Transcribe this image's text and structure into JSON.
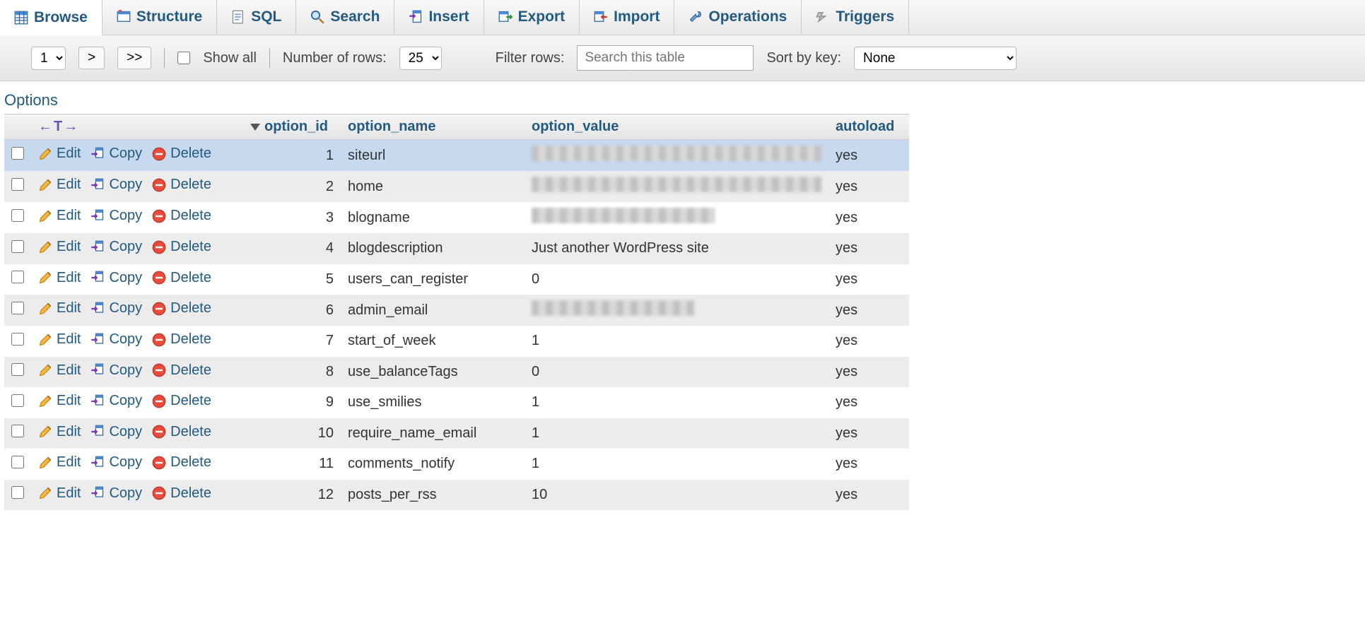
{
  "colors": {
    "link": "#235a81",
    "header_bg_top": "#f4f4f4",
    "header_bg_bottom": "#e4e4e4",
    "row_even": "#ececec",
    "row_odd": "#ffffff",
    "row_highlight": "#c7d9ef"
  },
  "tabs": [
    {
      "label": "Browse",
      "icon": "browse",
      "active": true
    },
    {
      "label": "Structure",
      "icon": "structure",
      "active": false
    },
    {
      "label": "SQL",
      "icon": "sql",
      "active": false
    },
    {
      "label": "Search",
      "icon": "search",
      "active": false
    },
    {
      "label": "Insert",
      "icon": "insert",
      "active": false
    },
    {
      "label": "Export",
      "icon": "export",
      "active": false
    },
    {
      "label": "Import",
      "icon": "import",
      "active": false
    },
    {
      "label": "Operations",
      "icon": "operations",
      "active": false
    },
    {
      "label": "Triggers",
      "icon": "triggers",
      "active": false
    }
  ],
  "toolbar": {
    "page_select_value": "1",
    "page_next": ">",
    "page_last": ">>",
    "show_all_label": "Show all",
    "show_all_checked": false,
    "num_rows_label": "Number of rows:",
    "num_rows_value": "25",
    "filter_label": "Filter rows:",
    "filter_placeholder": "Search this table",
    "sort_label": "Sort by key:",
    "sort_value": "None"
  },
  "options_label": "Options",
  "sort_toggle_glyph": "←T→",
  "table": {
    "columns": [
      "option_id",
      "option_name",
      "option_value",
      "autoload"
    ],
    "sorted_column": "option_id",
    "sort_dir": "desc",
    "action_labels": {
      "edit": "Edit",
      "copy": "Copy",
      "delete": "Delete"
    },
    "rows": [
      {
        "id": 1,
        "name": "siteurl",
        "value_blurred": true,
        "blur_w": 410,
        "value": "",
        "autoload": "yes",
        "highlight": true
      },
      {
        "id": 2,
        "name": "home",
        "value_blurred": true,
        "blur_w": 410,
        "value": "",
        "autoload": "yes"
      },
      {
        "id": 3,
        "name": "blogname",
        "value_blurred": true,
        "blur_w": 260,
        "value": "",
        "autoload": "yes"
      },
      {
        "id": 4,
        "name": "blogdescription",
        "value_blurred": false,
        "value": "Just another WordPress site",
        "autoload": "yes"
      },
      {
        "id": 5,
        "name": "users_can_register",
        "value_blurred": false,
        "value": "0",
        "autoload": "yes"
      },
      {
        "id": 6,
        "name": "admin_email",
        "value_blurred": true,
        "blur_w": 230,
        "value": "",
        "autoload": "yes"
      },
      {
        "id": 7,
        "name": "start_of_week",
        "value_blurred": false,
        "value": "1",
        "autoload": "yes"
      },
      {
        "id": 8,
        "name": "use_balanceTags",
        "value_blurred": false,
        "value": "0",
        "autoload": "yes"
      },
      {
        "id": 9,
        "name": "use_smilies",
        "value_blurred": false,
        "value": "1",
        "autoload": "yes"
      },
      {
        "id": 10,
        "name": "require_name_email",
        "value_blurred": false,
        "value": "1",
        "autoload": "yes"
      },
      {
        "id": 11,
        "name": "comments_notify",
        "value_blurred": false,
        "value": "1",
        "autoload": "yes"
      },
      {
        "id": 12,
        "name": "posts_per_rss",
        "value_blurred": false,
        "value": "10",
        "autoload": "yes"
      }
    ]
  }
}
